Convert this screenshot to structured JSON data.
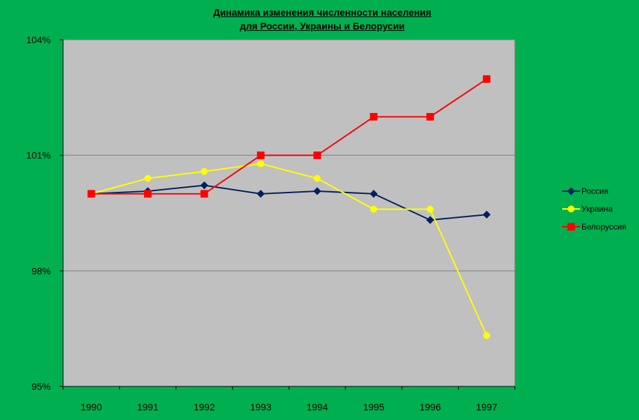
{
  "chart_data": {
    "type": "line",
    "title_line1": "Динамика изменения  численности населения ",
    "title_line2": "для России, Украины и Белорусии",
    "categories": [
      "1990",
      "1991",
      "1992",
      "1993",
      "1994",
      "1995",
      "1996",
      "1997"
    ],
    "ylim": [
      95,
      104
    ],
    "y_ticks": [
      {
        "value": 95,
        "label": "95%"
      },
      {
        "value": 98,
        "label": "98%"
      },
      {
        "value": 101,
        "label": "101%"
      },
      {
        "value": 104,
        "label": "104%"
      }
    ],
    "grid": true,
    "legend_position": "right",
    "plot_background": "#C0C0C0",
    "series": [
      {
        "name": "Россия",
        "color": "#002060",
        "marker": "diamond",
        "values": [
          100.0,
          100.07,
          100.22,
          100.0,
          100.07,
          100.0,
          99.32,
          99.46
        ]
      },
      {
        "name": "Украина",
        "color": "#FFFF00",
        "marker": "circle",
        "values": [
          100.0,
          100.4,
          100.58,
          100.78,
          100.4,
          99.6,
          99.6,
          96.32
        ]
      },
      {
        "name": "Белоруссия",
        "color": "#FF0000",
        "marker": "square",
        "values": [
          100.0,
          100.0,
          100.0,
          101.0,
          101.0,
          102.0,
          102.0,
          102.98
        ]
      }
    ]
  }
}
